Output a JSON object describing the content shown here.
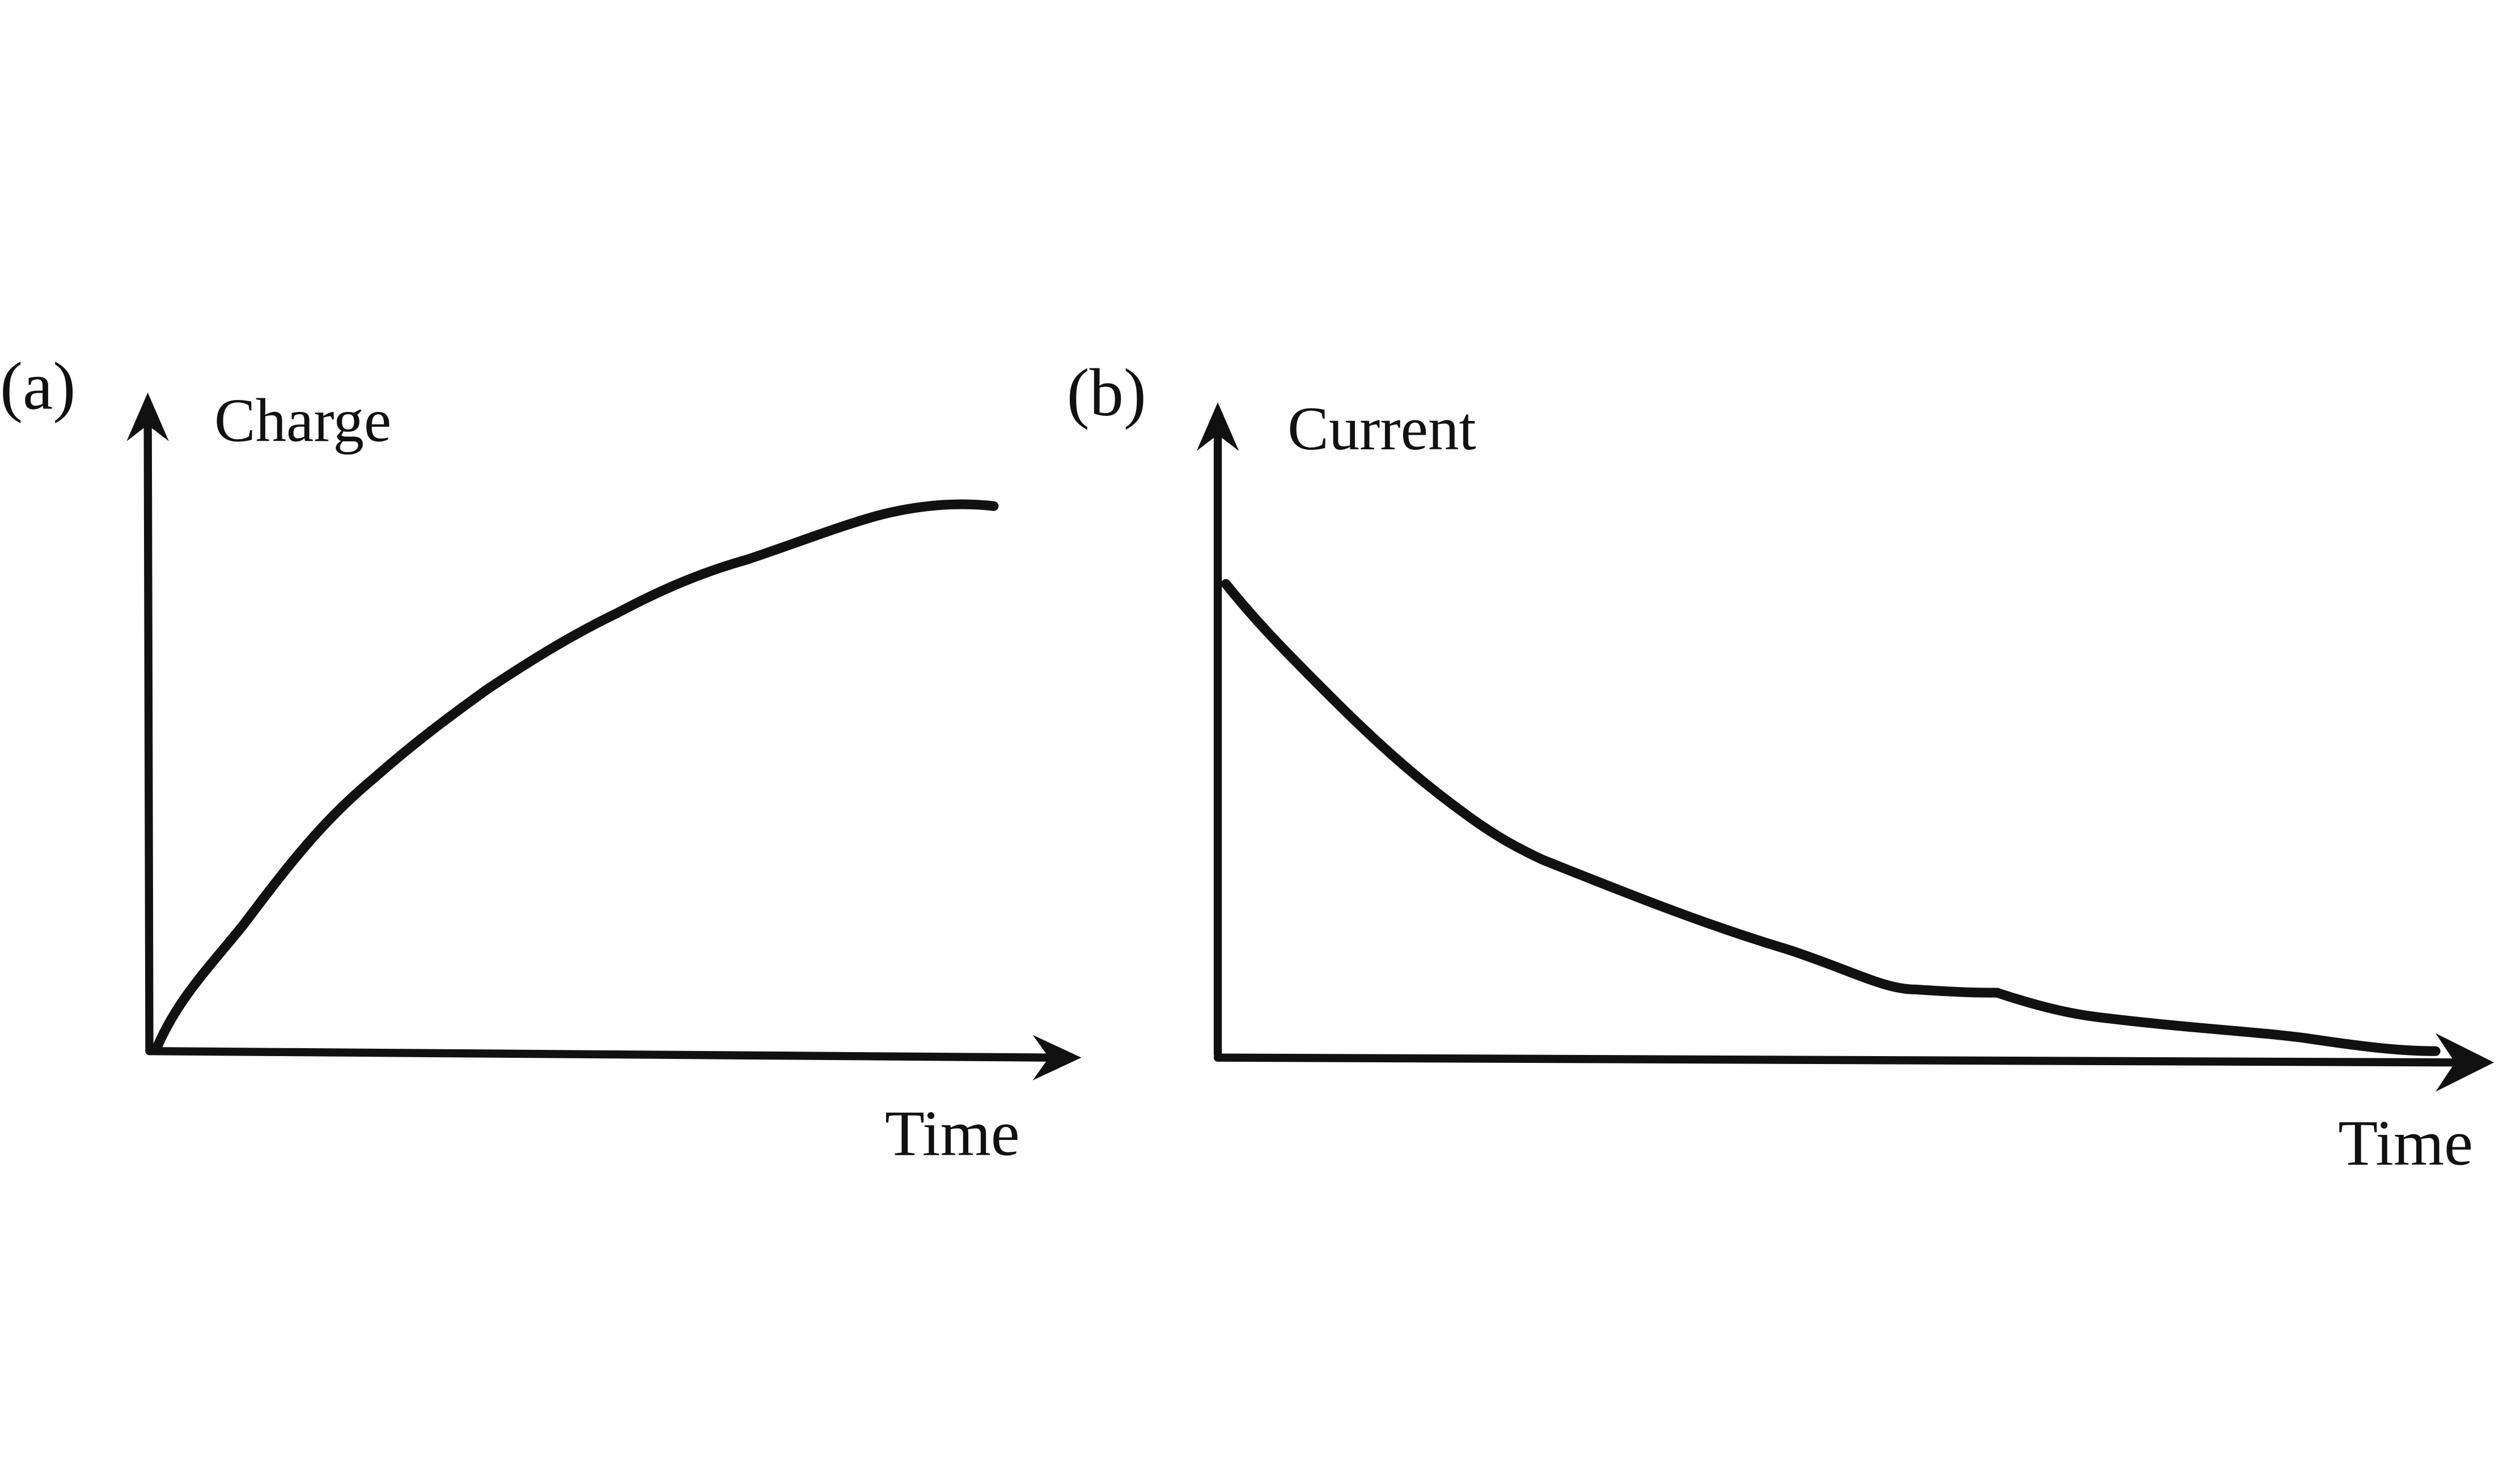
{
  "panels": [
    {
      "tag": "(a)",
      "y_label": "Charge",
      "x_label": "Time"
    },
    {
      "tag": "(b)",
      "y_label": "Current",
      "x_label": "Time"
    }
  ]
}
